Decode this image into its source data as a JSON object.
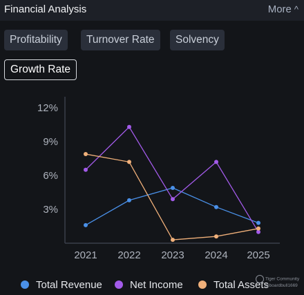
{
  "header": {
    "title": "Financial Analysis",
    "more_label": "More",
    "more_icon": "chevron-up-icon"
  },
  "tabs": [
    {
      "label": "Profitability",
      "active": false
    },
    {
      "label": "Turnover Rate",
      "active": false
    },
    {
      "label": "Solvency",
      "active": false
    },
    {
      "label": "Growth Rate",
      "active": true
    }
  ],
  "colors": {
    "total_revenue": "#4a90e8",
    "net_income": "#a35bea",
    "total_assets": "#f0b07a"
  },
  "chart_data": {
    "type": "line",
    "title": "",
    "xlabel": "",
    "ylabel": "",
    "x": [
      "2021",
      "2022",
      "2023",
      "2024",
      "2025"
    ],
    "y_ticks": [
      "3%",
      "6%",
      "9%",
      "12%"
    ],
    "ylim": [
      0,
      12
    ],
    "series": [
      {
        "name": "Total Revenue",
        "values": [
          1.6,
          3.8,
          4.9,
          3.2,
          1.8
        ]
      },
      {
        "name": "Net Income",
        "values": [
          6.5,
          10.3,
          3.9,
          7.2,
          1.0
        ]
      },
      {
        "name": "Total Assets",
        "values": [
          7.9,
          7.2,
          0.3,
          0.6,
          1.3
        ]
      }
    ],
    "grid": false,
    "legend": "bottom"
  },
  "watermark": {
    "line1": "Tiger Community",
    "line2": "@boardbull1669"
  }
}
